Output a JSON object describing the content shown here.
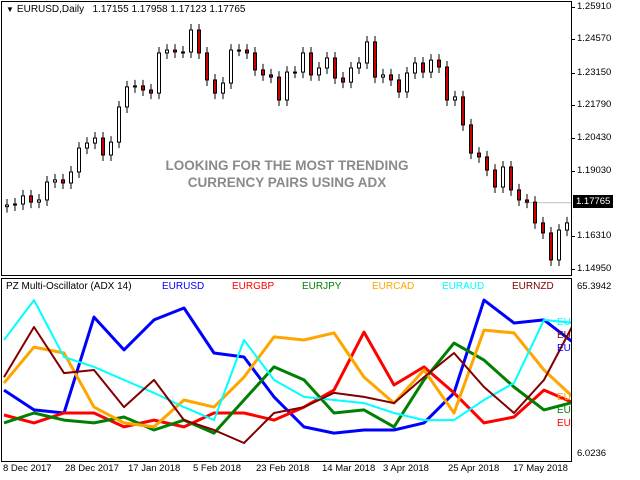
{
  "header": {
    "symbol_timeframe": "EURUSD,Daily",
    "open": "1.17155",
    "high": "1.17958",
    "low": "1.17123",
    "close": "1.17765"
  },
  "overlay_text": {
    "line1": "LOOKING FOR THE MOST TRENDING",
    "line2": "CURRENCY PAIRS USING ADX"
  },
  "price_axis": {
    "labels": [
      "1.25910",
      "1.24570",
      "1.23150",
      "1.21790",
      "1.20430",
      "1.19030",
      "1.16310",
      "1.14950"
    ],
    "current_price": "1.17765"
  },
  "oscillator": {
    "title": "PZ Multi-Oscillator (ADX 14)",
    "max_label": "65.3942",
    "min_label": "6.0236"
  },
  "time_axis": {
    "labels": [
      "8 Dec 2017",
      "28 Dec 2017",
      "17 Jan 2018",
      "5 Feb 2018",
      "23 Feb 2018",
      "14 Mar 2018",
      "3 Apr 2018",
      "25 Apr 2018",
      "17 May 2018"
    ]
  },
  "colors": {
    "bull_candle": "#ffffff",
    "bear_candle": "#cc0000",
    "candle_outline": "#000000",
    "last_price_line": "#c0c0c0",
    "overlay_text": "#8a8a8a"
  },
  "chart_data": [
    {
      "type": "candlestick",
      "symbol": "EURUSD",
      "timeframe": "Daily",
      "ylim": [
        1.1495,
        1.2591
      ],
      "first_open": 1.176,
      "closes": [
        1.1767,
        1.1771,
        1.1805,
        1.1779,
        1.1788,
        1.1863,
        1.1872,
        1.1859,
        1.1905,
        1.2005,
        1.2026,
        1.2047,
        1.1976,
        1.203,
        1.2177,
        1.2261,
        1.2265,
        1.2248,
        1.2235,
        1.2403,
        1.2415,
        1.2407,
        1.2407,
        1.2499,
        1.2403,
        1.229,
        1.2235,
        1.2277,
        1.2415,
        1.2415,
        1.2403,
        1.2332,
        1.2311,
        1.2302,
        1.2206,
        1.2323,
        1.2323,
        1.2403,
        1.2311,
        1.234,
        1.2382,
        1.2298,
        1.2281,
        1.234,
        1.2361,
        1.2449,
        1.2302,
        1.2311,
        1.229,
        1.224,
        1.2319,
        1.2361,
        1.2323,
        1.2373,
        1.2344,
        1.2206,
        1.2219,
        1.2102,
        1.1984,
        1.1968,
        1.1913,
        1.1842,
        1.1926,
        1.183,
        1.1788,
        1.1779,
        1.1692,
        1.165,
        1.1537,
        1.1662,
        1.1692,
        1.1777
      ]
    },
    {
      "type": "line",
      "title": "PZ Multi-Oscillator (ADX 14)",
      "ylim": [
        6.0236,
        65.3942
      ],
      "series": [
        {
          "name": "EURUSD",
          "color": "#0000ff",
          "width": 3,
          "values": [
            27.9,
            20.9,
            19.8,
            53.7,
            42.1,
            52.7,
            56.9,
            41.0,
            39.6,
            25.5,
            14.9,
            12.7,
            13.8,
            13.8,
            16.3,
            26.9,
            59.7,
            51.6,
            52.7,
            44.5
          ]
        },
        {
          "name": "EURGBP",
          "color": "#ff0000",
          "width": 3,
          "values": [
            19.1,
            16.3,
            19.8,
            19.8,
            14.9,
            17.3,
            14.9,
            19.8,
            19.8,
            17.3,
            21.9,
            27.9,
            48.4,
            29.7,
            36.1,
            26.9,
            16.3,
            18.4,
            27.9,
            23.3
          ]
        },
        {
          "name": "EURJPY",
          "color": "#008000",
          "width": 3,
          "values": [
            16.3,
            19.8,
            17.3,
            16.3,
            18.4,
            13.8,
            17.3,
            12.7,
            24.4,
            36.1,
            31.5,
            19.8,
            20.9,
            14.9,
            31.5,
            44.5,
            38.5,
            29.0,
            20.9,
            23.7
          ]
        },
        {
          "name": "EURCAD",
          "color": "#ffa500",
          "width": 3,
          "values": [
            30.4,
            43.1,
            41.0,
            21.9,
            16.3,
            14.9,
            24.4,
            21.9,
            32.5,
            46.7,
            45.6,
            48.1,
            32.5,
            23.3,
            35.0,
            19.8,
            49.1,
            48.1,
            35.0,
            25.1
          ]
        },
        {
          "name": "EURAUD",
          "color": "#00ffff",
          "width": 2,
          "values": [
            45.6,
            59.7,
            39.6,
            36.1,
            31.5,
            26.9,
            21.9,
            17.3,
            45.6,
            31.5,
            25.5,
            24.4,
            23.3,
            19.8,
            17.3,
            17.3,
            24.4,
            30.4,
            52.7,
            51.6
          ]
        },
        {
          "name": "EURNZD",
          "color": "#800000",
          "width": 2,
          "values": [
            32.5,
            50.2,
            33.9,
            35.0,
            21.9,
            31.5,
            17.3,
            13.8,
            9.2,
            19.8,
            21.9,
            26.9,
            25.5,
            23.3,
            32.5,
            41.0,
            29.0,
            19.8,
            31.5,
            51.6
          ]
        }
      ]
    }
  ]
}
